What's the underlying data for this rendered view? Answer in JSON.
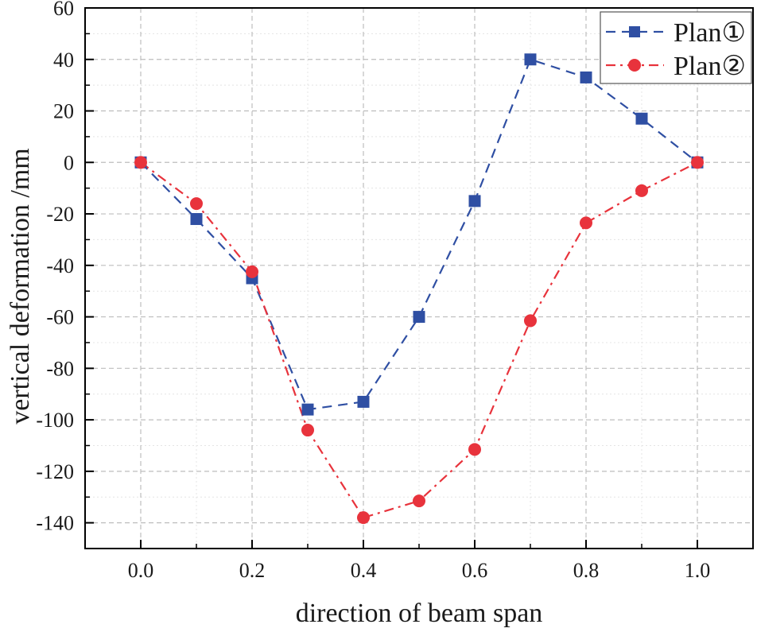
{
  "chart_data": {
    "type": "line",
    "title": "",
    "xlabel": "direction of beam span",
    "ylabel": "vertical deformation /mm",
    "xlim": [
      -0.1,
      1.1
    ],
    "ylim": [
      -150,
      60
    ],
    "x_ticks": [
      0.0,
      0.2,
      0.4,
      0.6,
      0.8,
      1.0
    ],
    "x_tick_labels": [
      "0.0",
      "0.2",
      "0.4",
      "0.6",
      "0.8",
      "1.0"
    ],
    "y_ticks": [
      -140,
      -120,
      -100,
      -80,
      -60,
      -40,
      -20,
      0,
      20,
      40,
      60
    ],
    "y_tick_labels": [
      "-140",
      "-120",
      "-100",
      "-80",
      "-60",
      "-40",
      "-20",
      "0",
      "20",
      "40",
      "60"
    ],
    "grid": true,
    "legend_position": "top-right",
    "x": [
      0.0,
      0.1,
      0.2,
      0.3,
      0.4,
      0.5,
      0.6,
      0.7,
      0.8,
      0.9,
      1.0
    ],
    "series": [
      {
        "name": "Plan①",
        "color": "#2f4fa3",
        "marker": "square",
        "line_style": "dashed",
        "values": [
          0,
          -22,
          -45,
          -96,
          -93,
          -60,
          -15,
          40,
          33,
          17,
          0
        ]
      },
      {
        "name": "Plan②",
        "color": "#e8333c",
        "marker": "circle",
        "line_style": "dash-dot",
        "values": [
          0,
          -16,
          -42.5,
          -104,
          -138,
          -131.5,
          -111.5,
          -61.5,
          -23.5,
          -11,
          0
        ]
      }
    ]
  }
}
